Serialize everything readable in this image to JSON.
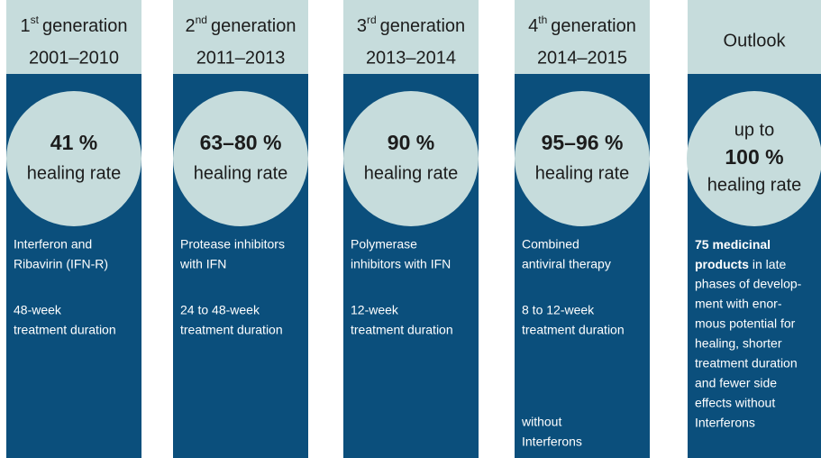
{
  "columns": [
    {
      "ordinal": "1",
      "sup": "st",
      "header": "generation",
      "years": "2001–2010",
      "prefix": null,
      "rate": "41 %",
      "rate_label": "healing rate",
      "description": [
        "Interferon and",
        "Ribavirin (IFN-R)"
      ],
      "duration": [
        "48-week",
        "treatment duration"
      ],
      "note": null
    },
    {
      "ordinal": "2",
      "sup": "nd",
      "header": "generation",
      "years": "2011–2013",
      "prefix": null,
      "rate": "63–80 %",
      "rate_label": "healing rate",
      "description": [
        "Protease inhibitors",
        "with IFN"
      ],
      "duration": [
        "24 to 48-week",
        "treatment duration"
      ],
      "note": null
    },
    {
      "ordinal": "3",
      "sup": "rd",
      "header": "generation",
      "years": "2013–2014",
      "prefix": null,
      "rate": "90 %",
      "rate_label": "healing rate",
      "description": [
        "Polymerase",
        "inhibitors with IFN"
      ],
      "duration": [
        "12-week",
        "treatment duration"
      ],
      "note": null
    },
    {
      "ordinal": "4",
      "sup": "th",
      "header": "generation",
      "years": "2014–2015",
      "prefix": null,
      "rate": "95–96 %",
      "rate_label": "healing rate",
      "description": [
        "Combined",
        "antiviral therapy"
      ],
      "duration": [
        "8 to 12-week",
        "treatment duration"
      ],
      "note": [
        "without",
        "Interferons"
      ]
    },
    {
      "ordinal": null,
      "sup": null,
      "header": "Outlook",
      "years": null,
      "prefix": "up to",
      "rate": "100 %",
      "rate_label": "healing rate",
      "bold": [
        "75 medicinal",
        "products"
      ],
      "description": [
        "in late",
        "phases of develop-",
        "ment with enor-",
        "mous potential for",
        "healing, shorter",
        "treatment duration",
        "and fewer side",
        "effects without",
        "Interferons"
      ],
      "duration": null,
      "note": null
    }
  ]
}
